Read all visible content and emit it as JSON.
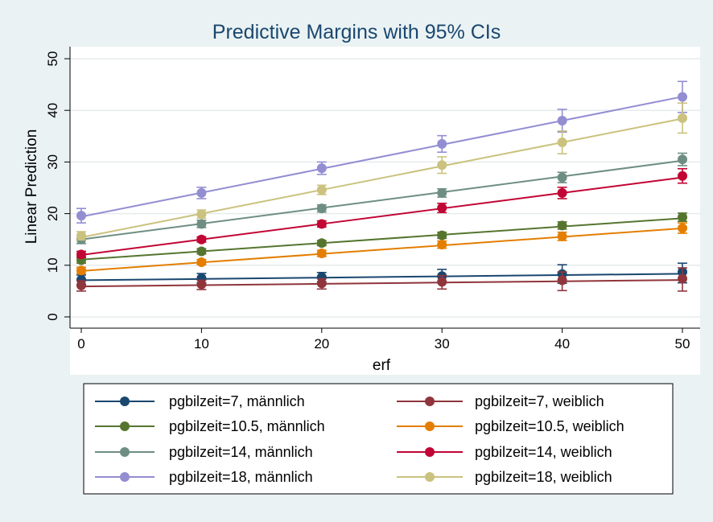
{
  "chart_data": {
    "type": "line",
    "title": "Predictive Margins with 95% CIs",
    "xlabel": "erf",
    "ylabel": "Linear Prediction",
    "x": [
      0,
      10,
      20,
      30,
      40,
      50
    ],
    "xticks": [
      "0",
      "10",
      "20",
      "30",
      "40",
      "50"
    ],
    "yticks": [
      "0",
      "10",
      "20",
      "30",
      "40",
      "50"
    ],
    "xlim": [
      0,
      50
    ],
    "ylim": [
      0,
      50
    ],
    "grid": "horizontal",
    "legend_position": "bottom",
    "series": [
      {
        "name": "pgbilzeit=7, männlich",
        "color": "#1a476f",
        "points": [
          7.2,
          7.5,
          7.7,
          7.9,
          8.3,
          8.7
        ],
        "lines": [
          7.1,
          7.35,
          7.6,
          7.85,
          8.1,
          8.35
        ],
        "ci_low": [
          6.3,
          6.6,
          6.8,
          6.6,
          6.5,
          6.6
        ],
        "ci_high": [
          8.1,
          8.4,
          8.6,
          9.2,
          10.1,
          10.4
        ]
      },
      {
        "name": "pgbilzeit=7, weiblich",
        "color": "#90353b",
        "points": [
          6.1,
          6.3,
          6.5,
          6.8,
          7.1,
          7.4
        ],
        "lines": [
          5.9,
          6.15,
          6.4,
          6.65,
          6.9,
          7.15
        ],
        "ci_low": [
          5.0,
          5.3,
          5.4,
          5.4,
          5.1,
          5.0
        ],
        "ci_high": [
          7.0,
          7.1,
          7.4,
          8.0,
          8.7,
          9.5
        ]
      },
      {
        "name": "pgbilzeit=10.5, männlich",
        "color": "#55752f",
        "points": [
          11.0,
          12.7,
          14.3,
          15.8,
          17.7,
          19.3
        ],
        "lines": [
          11.1,
          12.7,
          14.3,
          15.9,
          17.5,
          19.1
        ],
        "ci_low": [
          10.4,
          12.2,
          13.8,
          15.2,
          17.0,
          18.5
        ],
        "ci_high": [
          11.6,
          13.2,
          14.8,
          16.4,
          18.4,
          20.1
        ]
      },
      {
        "name": "pgbilzeit=10.5, weiblich",
        "color": "#e37e00",
        "points": [
          9.0,
          10.6,
          12.3,
          14.0,
          15.6,
          17.2
        ],
        "lines": [
          8.9,
          10.55,
          12.2,
          13.85,
          15.5,
          17.15
        ],
        "ci_low": [
          8.4,
          10.1,
          11.7,
          13.3,
          14.8,
          16.2
        ],
        "ci_high": [
          9.6,
          11.1,
          12.9,
          14.7,
          16.4,
          18.2
        ]
      },
      {
        "name": "pgbilzeit=14, männlich",
        "color": "#6e8e84",
        "points": [
          15.0,
          18.0,
          21.0,
          24.0,
          27.0,
          30.5
        ],
        "lines": [
          15.0,
          18.05,
          21.1,
          24.15,
          27.2,
          30.25
        ],
        "ci_low": [
          14.2,
          17.3,
          20.3,
          23.2,
          26.0,
          29.3
        ],
        "ci_high": [
          15.8,
          18.7,
          21.7,
          24.8,
          28.0,
          31.7
        ]
      },
      {
        "name": "pgbilzeit=14, weiblich",
        "color": "#c10534",
        "points": [
          12.1,
          15.0,
          18.0,
          21.1,
          24.0,
          27.3
        ],
        "lines": [
          12.0,
          15.0,
          18.0,
          21.0,
          24.0,
          27.0
        ],
        "ci_low": [
          11.5,
          14.5,
          17.4,
          20.2,
          22.9,
          25.9
        ],
        "ci_high": [
          12.7,
          15.5,
          18.6,
          22.0,
          25.1,
          28.7
        ]
      },
      {
        "name": "pgbilzeit=18, männlich",
        "color": "#938dd2",
        "points": [
          19.6,
          24.0,
          28.8,
          33.5,
          38.0,
          42.6
        ],
        "lines": [
          19.4,
          24.05,
          28.7,
          33.35,
          38.0,
          42.65
        ],
        "ci_low": [
          18.2,
          22.9,
          27.6,
          31.9,
          35.8,
          39.6
        ],
        "ci_high": [
          21.0,
          25.1,
          30.0,
          35.1,
          40.2,
          45.6
        ]
      },
      {
        "name": "pgbilzeit=18, weiblich",
        "color": "#cac27e",
        "points": [
          15.7,
          19.9,
          24.6,
          29.4,
          33.8,
          38.5
        ],
        "lines": [
          15.4,
          20.0,
          24.6,
          29.2,
          33.8,
          38.4
        ],
        "ci_low": [
          14.9,
          19.1,
          23.7,
          27.8,
          31.6,
          35.6
        ],
        "ci_high": [
          16.5,
          20.7,
          25.5,
          31.0,
          36.0,
          41.4
        ]
      }
    ],
    "legend_order": [
      0,
      1,
      2,
      3,
      4,
      5,
      6,
      7
    ]
  }
}
